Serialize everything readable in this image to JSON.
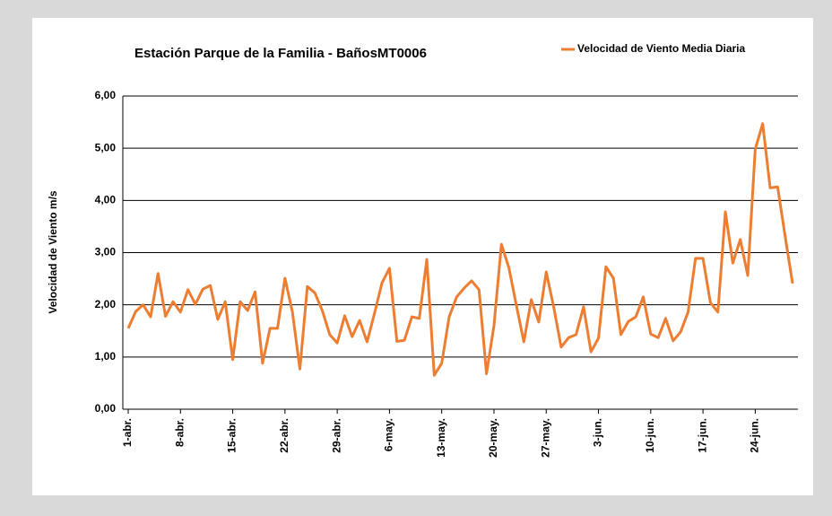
{
  "chart_data": {
    "type": "line",
    "title": "Estación Parque de la Familia  - BañosMT0006",
    "ylabel": "Velocidad de Viento m/s",
    "categories": [
      "1-abr.",
      null,
      null,
      null,
      null,
      null,
      null,
      "8-abr.",
      null,
      null,
      null,
      null,
      null,
      null,
      "15-abr.",
      null,
      null,
      null,
      null,
      null,
      null,
      "22-abr.",
      null,
      null,
      null,
      null,
      null,
      null,
      "29-abr.",
      null,
      null,
      null,
      null,
      null,
      null,
      "6-may.",
      null,
      null,
      null,
      null,
      null,
      null,
      "13-may.",
      null,
      null,
      null,
      null,
      null,
      null,
      "20-may.",
      null,
      null,
      null,
      null,
      null,
      null,
      "27-may.",
      null,
      null,
      null,
      null,
      null,
      null,
      "3-jun.",
      null,
      null,
      null,
      null,
      null,
      null,
      "10-jun.",
      null,
      null,
      null,
      null,
      null,
      null,
      "17-jun.",
      null,
      null,
      null,
      null,
      null,
      null,
      "24-jun.",
      null,
      null,
      null,
      null,
      null
    ],
    "series": [
      {
        "name": "Velocidad de Viento Media Diaria",
        "color": "#ed7d31",
        "values": [
          1.55,
          1.87,
          2.0,
          1.77,
          2.6,
          1.78,
          2.06,
          1.86,
          2.29,
          2.01,
          2.3,
          2.37,
          1.72,
          2.06,
          0.95,
          2.06,
          1.89,
          2.25,
          0.88,
          1.55,
          1.55,
          2.51,
          1.86,
          0.77,
          2.35,
          2.23,
          1.89,
          1.43,
          1.27,
          1.79,
          1.39,
          1.7,
          1.29,
          1.84,
          2.42,
          2.7,
          1.3,
          1.32,
          1.77,
          1.74,
          2.87,
          0.65,
          0.88,
          1.77,
          2.15,
          2.32,
          2.46,
          2.29,
          0.68,
          1.6,
          3.16,
          2.71,
          1.99,
          1.29,
          2.1,
          1.67,
          2.63,
          1.96,
          1.19,
          1.37,
          1.43,
          1.96,
          1.1,
          1.36,
          2.73,
          2.51,
          1.43,
          1.68,
          1.77,
          2.15,
          1.44,
          1.37,
          1.74,
          1.31,
          1.48,
          1.86,
          2.89,
          2.89,
          2.04,
          1.86,
          3.78,
          2.8,
          3.25,
          2.56,
          4.98,
          5.47,
          4.24,
          4.26,
          3.32,
          2.41
        ]
      }
    ],
    "ylim": [
      0,
      6
    ],
    "yticks": [
      {
        "value": 0,
        "label": "0,00"
      },
      {
        "value": 1,
        "label": "1,00"
      },
      {
        "value": 2,
        "label": "2,00"
      },
      {
        "value": 3,
        "label": "3,00"
      },
      {
        "value": 4,
        "label": "4,00"
      },
      {
        "value": 5,
        "label": "5,00"
      },
      {
        "value": 6,
        "label": "6,00"
      }
    ],
    "grid": true,
    "legend": "top-right"
  }
}
